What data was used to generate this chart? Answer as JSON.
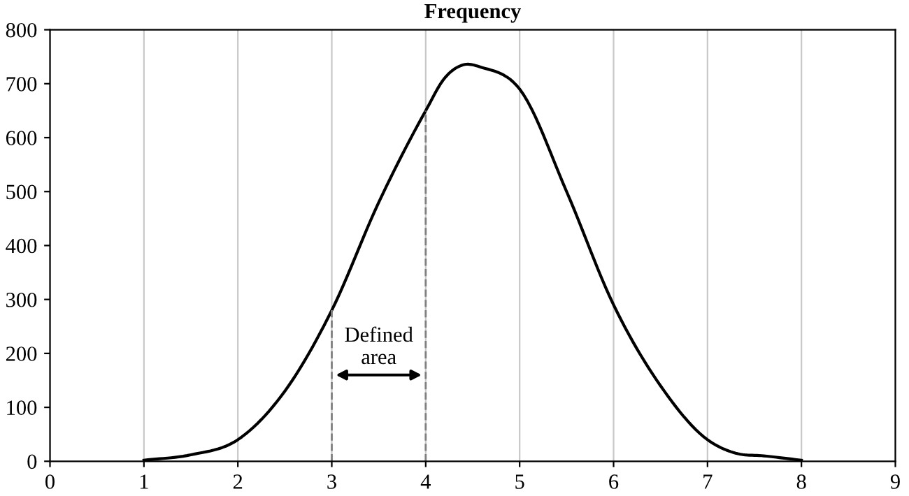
{
  "chart_data": {
    "type": "line",
    "title": "Frequency",
    "series": [
      {
        "color": "#000000",
        "x": [
          1,
          1.5,
          2,
          2.5,
          3,
          3.5,
          4,
          4.2,
          4.4,
          4.6,
          5,
          5.5,
          6,
          6.5,
          7,
          7.3,
          7.6,
          8
        ],
        "values": [
          2,
          12,
          40,
          130,
          280,
          480,
          650,
          710,
          735,
          730,
          690,
          500,
          290,
          140,
          40,
          15,
          10,
          2
        ]
      }
    ],
    "xlim": [
      0,
      9
    ],
    "xticks": [
      0,
      1,
      2,
      3,
      4,
      5,
      6,
      7,
      8,
      9
    ],
    "ylim": [
      0,
      800
    ],
    "yticks": [
      0,
      100,
      200,
      300,
      400,
      500,
      600,
      700,
      800
    ],
    "grid": "x",
    "marker": "none",
    "line_style": "solid",
    "ref_lines": [
      {
        "axis": "x",
        "value": 3,
        "color": "#808080",
        "line_style": "dashed"
      },
      {
        "axis": "x",
        "value": 4,
        "color": "#808080",
        "line_style": "dashed"
      }
    ],
    "annotations": [
      "Defined\narea"
    ]
  }
}
